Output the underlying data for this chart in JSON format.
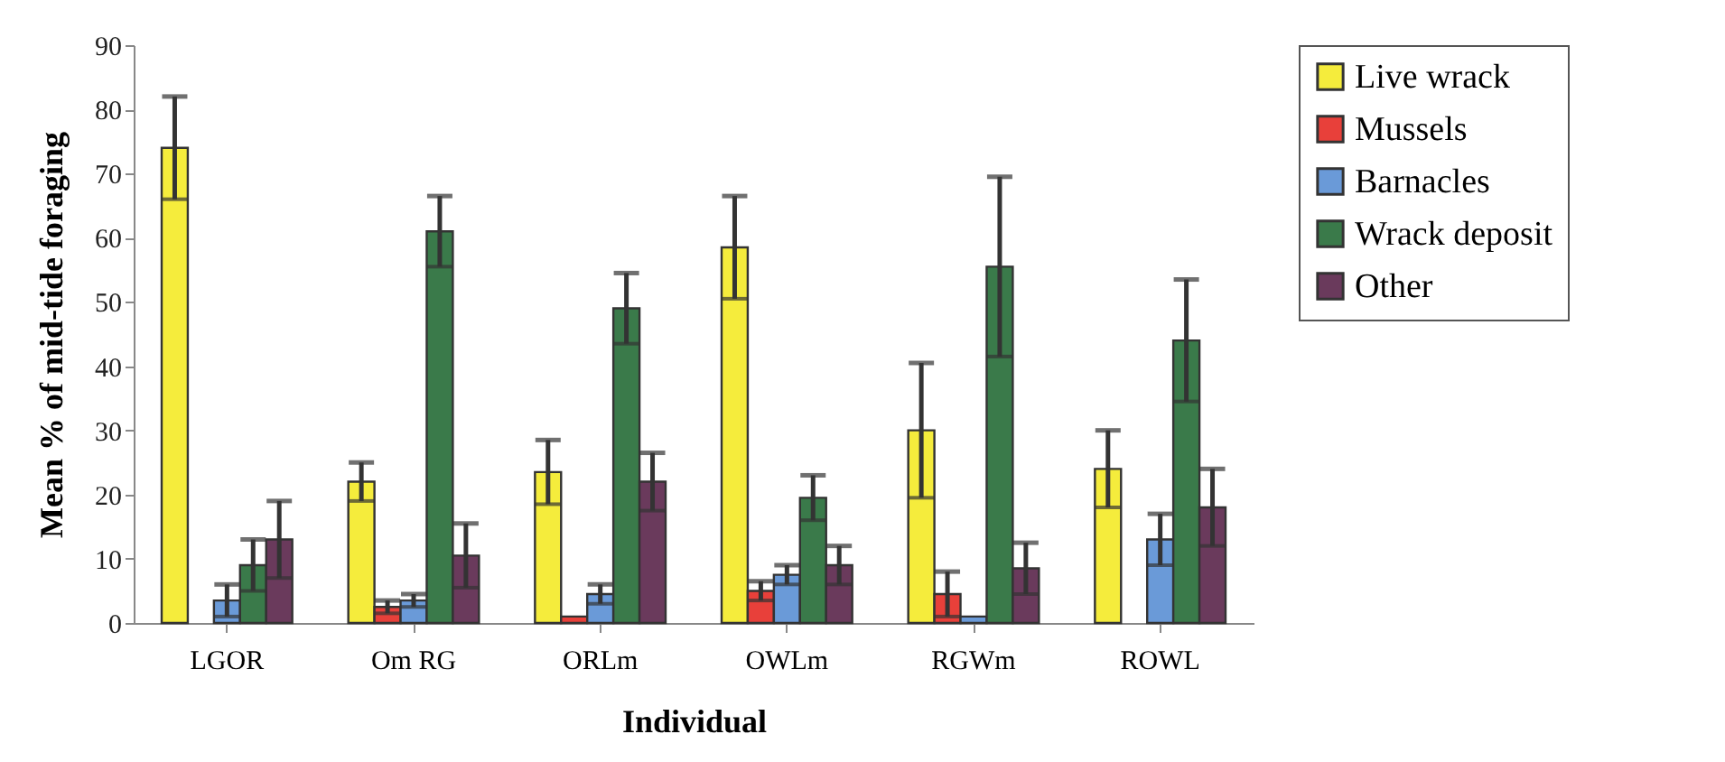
{
  "chart_data": {
    "type": "bar",
    "xlabel": "Individual",
    "ylabel": "Mean % of mid-tide foraging",
    "categories": [
      "LGOR",
      "Om RG",
      "ORLm",
      "OWLm",
      "RGWm",
      "ROWL"
    ],
    "series": [
      {
        "name": "Live wrack",
        "color": "#f5ec3c",
        "values": [
          74,
          22,
          23.5,
          58.5,
          30,
          24
        ],
        "errors": [
          8,
          3,
          5,
          8,
          10.5,
          6
        ]
      },
      {
        "name": "Mussels",
        "color": "#e8403a",
        "values": [
          null,
          2.5,
          1,
          5,
          4.5,
          null
        ],
        "errors": [
          null,
          1,
          null,
          1.5,
          3.5,
          null
        ]
      },
      {
        "name": "Barnacles",
        "color": "#6a9ad8",
        "values": [
          3.5,
          3.5,
          4.5,
          7.5,
          1,
          13
        ],
        "errors": [
          2.5,
          1,
          1.5,
          1.5,
          null,
          4
        ]
      },
      {
        "name": "Wrack deposit",
        "color": "#3a7a4a",
        "values": [
          9,
          61,
          49,
          19.5,
          55.5,
          44
        ],
        "errors": [
          4,
          5.5,
          5.5,
          3.5,
          14,
          9.5
        ]
      },
      {
        "name": "Other",
        "color": "#6a3a5c",
        "values": [
          13,
          10.5,
          22,
          9,
          8.5,
          18
        ],
        "errors": [
          6,
          5,
          4.5,
          3,
          4,
          6
        ]
      }
    ],
    "ylim": [
      0,
      90
    ],
    "yticks": [
      0,
      10,
      20,
      30,
      40,
      50,
      60,
      70,
      80,
      90
    ],
    "grid": false,
    "legend": "right"
  }
}
